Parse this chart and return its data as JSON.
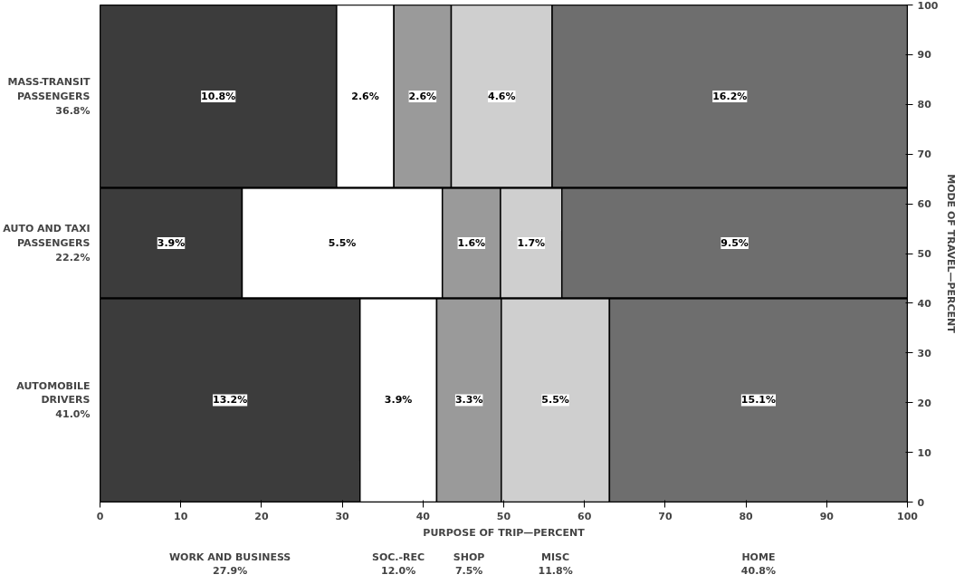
{
  "chart_data": {
    "type": "bar",
    "orientation": "horizontal",
    "stacked": true,
    "categories": [
      "MASS-TRANSIT\nPASSENGERS\n36.8%",
      "AUTO AND TAXI\nPASSENGERS\n22.2%",
      "AUTOMOBILE\nDRIVERS\n41.0%"
    ],
    "series": [
      {
        "color": "#3c3c3c",
        "values": [
          29.3,
          17.6,
          32.2
        ]
      },
      {
        "color": "#ffffff",
        "values": [
          7.1,
          24.8,
          9.5
        ]
      },
      {
        "color": "#9a9a9a",
        "values": [
          7.1,
          7.2,
          8.0
        ]
      },
      {
        "color": "#cfcfcf",
        "values": [
          12.5,
          7.6,
          13.4
        ]
      },
      {
        "color": "#6e6e6e",
        "values": [
          44.0,
          42.8,
          36.9
        ]
      }
    ],
    "ref_lines": [
      {
        "axis": "y2",
        "value": 63.2,
        "color": "#000000"
      },
      {
        "axis": "y2",
        "value": 41.0,
        "color": "#000000"
      }
    ],
    "annotations": [
      "10.8%",
      "2.6%",
      "2.6%",
      "4.6%",
      "16.2%",
      "3.9%",
      "5.5%",
      "1.6%",
      "1.7%",
      "9.5%",
      "13.2%",
      "3.9%",
      "3.3%",
      "5.5%",
      "15.1%",
      "WORK AND BUSINESS\n27.9%",
      "SOC.-REC\n12.0%",
      "SHOP\n7.5%",
      "MISC\n11.8%",
      "HOME\n40.8%"
    ],
    "xlim": [
      0,
      100
    ],
    "xticks": [
      0,
      10,
      20,
      30,
      40,
      50,
      60,
      70,
      80,
      90,
      100
    ],
    "xlabel": "PURPOSE OF TRIP—PERCENT",
    "y2lim": [
      0,
      100
    ],
    "y2ticks": [
      0,
      10,
      20,
      30,
      40,
      50,
      60,
      70,
      80,
      90,
      100
    ],
    "y2label": "MODE OF TRAVEL—PERCENT",
    "grid": false
  }
}
